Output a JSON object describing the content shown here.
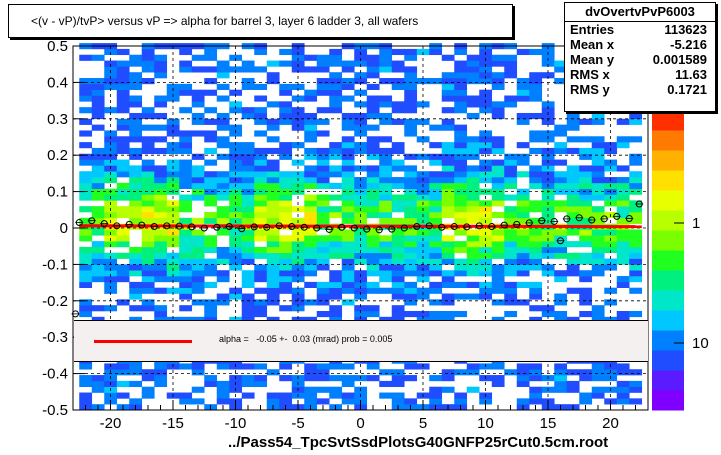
{
  "title": "<(v - vP)/tvP> versus   vP => alpha for barrel 3, layer 6 ladder 3, all wafers",
  "stats": {
    "name": "dvOvertvPvP6003",
    "rows": [
      {
        "key": "Entries",
        "value": "113623"
      },
      {
        "key": "Mean x",
        "value": "-5.216"
      },
      {
        "key": "Mean y",
        "value": "0.001589"
      },
      {
        "key": "RMS x",
        "value": "11.63"
      },
      {
        "key": "RMS y",
        "value": "0.1721"
      }
    ]
  },
  "fit_legend": "alpha =   -0.05 +-  0.03 (mrad) prob = 0.005",
  "xlabel": "../Pass54_TpcSvtSsdPlotsG40GNFP25rCut0.5cm.root",
  "colors": {
    "fit_line": "#ff0000",
    "grid": "#000000"
  },
  "chart_data": {
    "type": "heatmap",
    "xlim": [
      -23,
      23
    ],
    "ylim": [
      -0.5,
      0.5
    ],
    "x_ticks": [
      "-20",
      "-15",
      "-10",
      "-5",
      "0",
      "5",
      "10",
      "15",
      "20"
    ],
    "y_ticks": [
      "-0.5",
      "-0.4",
      "-0.3",
      "-0.2",
      "-0.1",
      "0",
      "0.1",
      "0.2",
      "0.3",
      "0.4",
      "0.5"
    ],
    "z_scale": "log",
    "z_tick_labels": [
      "1",
      "10"
    ],
    "grid": true,
    "fit": {
      "type": "line",
      "slope": -5e-05,
      "intercept": 0.005
    },
    "profile_points": [
      {
        "x": -22.5,
        "y": 0.015
      },
      {
        "x": -21.5,
        "y": 0.02
      },
      {
        "x": -20.5,
        "y": 0.012
      },
      {
        "x": -19.5,
        "y": 0.006
      },
      {
        "x": -18.5,
        "y": 0.01
      },
      {
        "x": -17.5,
        "y": 0.008
      },
      {
        "x": -16.5,
        "y": 0.004
      },
      {
        "x": -15.5,
        "y": 0.006
      },
      {
        "x": -14.5,
        "y": 0.005
      },
      {
        "x": -13.5,
        "y": 0.003
      },
      {
        "x": -12.5,
        "y": 0.0
      },
      {
        "x": -11.5,
        "y": 0.002
      },
      {
        "x": -10.5,
        "y": 0.004
      },
      {
        "x": -9.5,
        "y": -0.002
      },
      {
        "x": -8.5,
        "y": 0.003
      },
      {
        "x": -7.5,
        "y": 0.002
      },
      {
        "x": -6.5,
        "y": 0.006
      },
      {
        "x": -5.5,
        "y": 0.004
      },
      {
        "x": -4.5,
        "y": 0.002
      },
      {
        "x": -3.5,
        "y": 0.0
      },
      {
        "x": -2.5,
        "y": -0.004
      },
      {
        "x": -1.5,
        "y": 0.002
      },
      {
        "x": -0.5,
        "y": 0.0
      },
      {
        "x": 0.5,
        "y": -0.003
      },
      {
        "x": 1.5,
        "y": -0.005
      },
      {
        "x": 2.5,
        "y": -0.003
      },
      {
        "x": 3.5,
        "y": 0.0
      },
      {
        "x": 4.5,
        "y": 0.004
      },
      {
        "x": 5.5,
        "y": 0.006
      },
      {
        "x": 6.5,
        "y": 0.002
      },
      {
        "x": 7.5,
        "y": 0.004
      },
      {
        "x": 8.5,
        "y": 0.003
      },
      {
        "x": 9.5,
        "y": 0.006
      },
      {
        "x": 10.5,
        "y": 0.004
      },
      {
        "x": 11.5,
        "y": 0.008
      },
      {
        "x": 12.5,
        "y": 0.01
      },
      {
        "x": 13.5,
        "y": 0.014
      },
      {
        "x": 14.5,
        "y": 0.02
      },
      {
        "x": 15.5,
        "y": 0.018
      },
      {
        "x": 16.5,
        "y": 0.025
      },
      {
        "x": 17.5,
        "y": 0.028
      },
      {
        "x": 18.5,
        "y": 0.022
      },
      {
        "x": 19.5,
        "y": 0.025
      },
      {
        "x": 20.5,
        "y": 0.032
      },
      {
        "x": 21.5,
        "y": 0.026
      },
      {
        "x": 22.3,
        "y": 0.066
      },
      {
        "x": 16.0,
        "y": -0.035
      },
      {
        "x": -22.8,
        "y": -0.236
      }
    ]
  }
}
